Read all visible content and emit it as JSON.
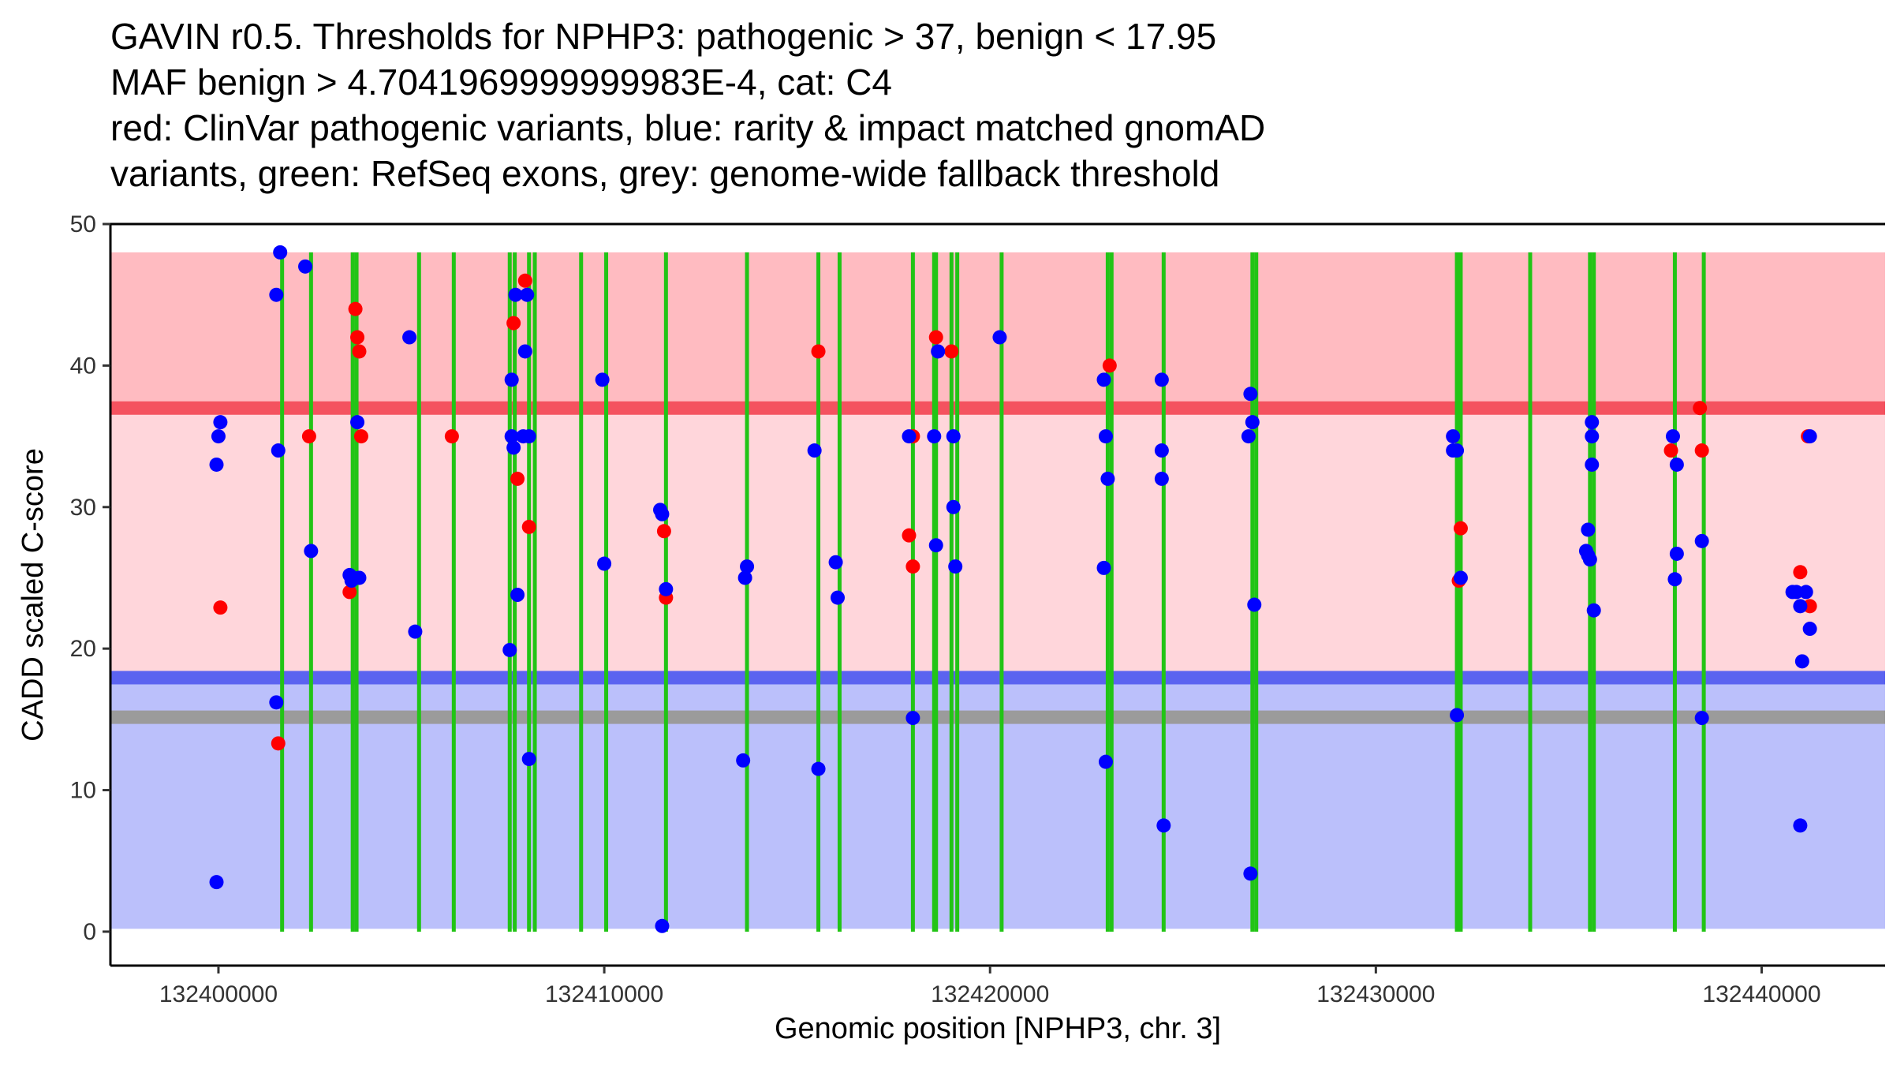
{
  "chart_data": {
    "type": "scatter",
    "title_lines": [
      "GAVIN r0.5. Thresholds for NPHP3: pathogenic > 37, benign < 17.95",
      "MAF benign > 4.7041969999999983E-4, cat: C4",
      "red: ClinVar pathogenic variants, blue: rarity & impact matched gnomAD",
      "variants, green: RefSeq exons, grey: genome-wide fallback threshold"
    ],
    "xlabel": "Genomic position [NPHP3, chr. 3]",
    "ylabel": "CADD scaled C-score",
    "xlim": [
      132397200,
      132443200
    ],
    "ylim": [
      -2.4,
      50
    ],
    "xticks": [
      132400000,
      132410000,
      132420000,
      132430000,
      132440000
    ],
    "xtick_labels": [
      "132400000",
      "132410000",
      "132420000",
      "132430000",
      "132440000"
    ],
    "yticks": [
      0,
      10,
      20,
      30,
      40,
      50
    ],
    "ytick_labels": [
      "0",
      "10",
      "20",
      "30",
      "40",
      "50"
    ],
    "regions": [
      {
        "name": "pathogenic-region",
        "from": 37,
        "to": 48,
        "color": "#ffbbc1"
      },
      {
        "name": "vus-region",
        "from": 17.95,
        "to": 37,
        "color": "#ffd6db"
      },
      {
        "name": "benign-region",
        "from": 0.2,
        "to": 17.95,
        "color": "#bbc0fb"
      }
    ],
    "thresholds": [
      {
        "name": "pathogenic-threshold",
        "value": 37,
        "color": "#f4525f"
      },
      {
        "name": "benign-threshold",
        "value": 17.95,
        "color": "#5b63f0"
      },
      {
        "name": "fallback-threshold",
        "value": 15.15,
        "color": "#9b9b9b"
      }
    ],
    "exon_color": "#22c416",
    "exons": [
      132401650,
      132402400,
      132403480,
      132403580,
      132405200,
      132406100,
      132407550,
      132407680,
      132408050,
      132408200,
      132409400,
      132410050,
      132411600,
      132413700,
      132415550,
      132416100,
      132418000,
      132418550,
      132418600,
      132419000,
      132419150,
      132420300,
      132423050,
      132423150,
      132424500,
      132426800,
      132426900,
      132432100,
      132432200,
      132434000,
      132435550,
      132435650,
      132437750,
      132438500
    ],
    "series": [
      {
        "name": "ClinVar pathogenic",
        "color": "#ff0000",
        "points": [
          [
            132400050,
            22.9
          ],
          [
            132401550,
            13.3
          ],
          [
            132402350,
            35
          ],
          [
            132403400,
            24
          ],
          [
            132403550,
            44
          ],
          [
            132403600,
            42
          ],
          [
            132403650,
            41
          ],
          [
            132403700,
            35
          ],
          [
            132406050,
            35
          ],
          [
            132407650,
            43
          ],
          [
            132407750,
            32
          ],
          [
            132407950,
            46
          ],
          [
            132408050,
            28.6
          ],
          [
            132411550,
            28.3
          ],
          [
            132411600,
            23.6
          ],
          [
            132415550,
            41
          ],
          [
            132417900,
            28
          ],
          [
            132418000,
            25.8
          ],
          [
            132418000,
            35
          ],
          [
            132418600,
            42
          ],
          [
            132419000,
            41
          ],
          [
            132423100,
            40
          ],
          [
            132432150,
            24.8
          ],
          [
            132432200,
            28.5
          ],
          [
            132437650,
            34
          ],
          [
            132438400,
            37
          ],
          [
            132438450,
            34
          ],
          [
            132441000,
            25.4
          ],
          [
            132441250,
            23
          ],
          [
            132441200,
            35
          ]
        ]
      },
      {
        "name": "gnomAD matched",
        "color": "#0000ff",
        "points": [
          [
            132399950,
            3.5
          ],
          [
            132399950,
            33
          ],
          [
            132400000,
            35
          ],
          [
            132400050,
            36
          ],
          [
            132401500,
            45
          ],
          [
            132401500,
            16.2
          ],
          [
            132401550,
            34
          ],
          [
            132401600,
            48
          ],
          [
            132402250,
            47
          ],
          [
            132402400,
            26.9
          ],
          [
            132403400,
            25.2
          ],
          [
            132403450,
            24.8
          ],
          [
            132403500,
            25
          ],
          [
            132403600,
            36
          ],
          [
            132403650,
            25
          ],
          [
            132404950,
            42
          ],
          [
            132405100,
            21.2
          ],
          [
            132407550,
            19.9
          ],
          [
            132407600,
            39
          ],
          [
            132407600,
            35
          ],
          [
            132407650,
            34.2
          ],
          [
            132407700,
            45
          ],
          [
            132407750,
            23.8
          ],
          [
            132407900,
            35
          ],
          [
            132407950,
            41
          ],
          [
            132408000,
            45
          ],
          [
            132408050,
            12.2
          ],
          [
            132408050,
            35
          ],
          [
            132409950,
            39
          ],
          [
            132410000,
            26
          ],
          [
            132411450,
            29.8
          ],
          [
            132411500,
            29.5
          ],
          [
            132411500,
            0.4
          ],
          [
            132411600,
            24.2
          ],
          [
            132413600,
            12.1
          ],
          [
            132413650,
            25
          ],
          [
            132413700,
            25.8
          ],
          [
            132415450,
            34
          ],
          [
            132415550,
            11.5
          ],
          [
            132416000,
            26.1
          ],
          [
            132416050,
            23.6
          ],
          [
            132417900,
            35
          ],
          [
            132418000,
            15.1
          ],
          [
            132418550,
            35
          ],
          [
            132418600,
            27.3
          ],
          [
            132418650,
            41
          ],
          [
            132419050,
            35
          ],
          [
            132419050,
            30
          ],
          [
            132419100,
            25.8
          ],
          [
            132420250,
            42
          ],
          [
            132422950,
            39
          ],
          [
            132422950,
            25.7
          ],
          [
            132423000,
            35
          ],
          [
            132423000,
            12
          ],
          [
            132423050,
            32
          ],
          [
            132424450,
            39
          ],
          [
            132424450,
            34
          ],
          [
            132424450,
            32
          ],
          [
            132424500,
            7.5
          ],
          [
            132426700,
            35
          ],
          [
            132426750,
            38
          ],
          [
            132426750,
            4.1
          ],
          [
            132426800,
            36
          ],
          [
            132426850,
            23.1
          ],
          [
            132432000,
            35
          ],
          [
            132432000,
            34
          ],
          [
            132432100,
            34
          ],
          [
            132432100,
            15.3
          ],
          [
            132432200,
            25
          ],
          [
            132435450,
            26.9
          ],
          [
            132435500,
            28.4
          ],
          [
            132435500,
            26.6
          ],
          [
            132435550,
            26.3
          ],
          [
            132435600,
            35
          ],
          [
            132435600,
            33
          ],
          [
            132435600,
            36
          ],
          [
            132435650,
            22.7
          ],
          [
            132437700,
            35
          ],
          [
            132437750,
            24.9
          ],
          [
            132437800,
            33
          ],
          [
            132437800,
            26.7
          ],
          [
            132438450,
            27.6
          ],
          [
            132438450,
            15.1
          ],
          [
            132440800,
            24
          ],
          [
            132440900,
            24
          ],
          [
            132441000,
            23
          ],
          [
            132441000,
            7.5
          ],
          [
            132441050,
            19.1
          ],
          [
            132441150,
            24
          ],
          [
            132441250,
            21.4
          ],
          [
            132441250,
            35
          ]
        ]
      }
    ]
  }
}
